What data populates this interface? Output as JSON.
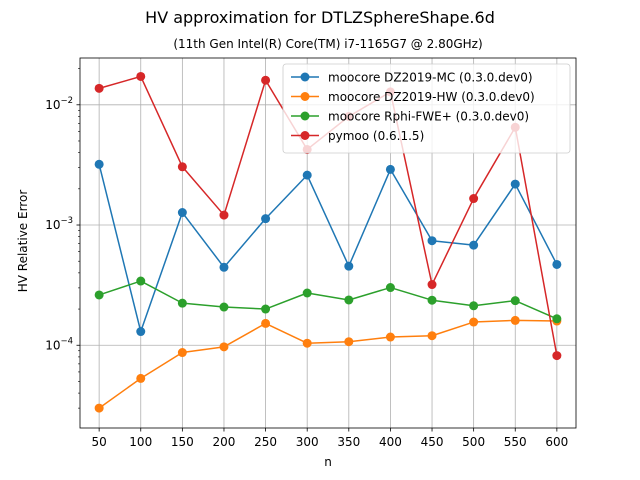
{
  "chart_data": {
    "type": "line",
    "title": "HV approximation for DTLZSphereShape.6d",
    "subtitle": "(11th Gen Intel(R) Core(TM) i7-1165G7 @ 2.80GHz)",
    "xlabel": "n",
    "ylabel": "HV Relative Error",
    "yscale": "log",
    "grid": true,
    "legend_position": "top-right",
    "x": [
      50,
      100,
      150,
      200,
      250,
      300,
      350,
      400,
      450,
      500,
      550,
      600
    ],
    "x_tick_labels": [
      "50",
      "100",
      "150",
      "200",
      "250",
      "300",
      "350",
      "400",
      "450",
      "500",
      "550",
      "600"
    ],
    "y_tick_labels": [
      {
        "value": 0.0001,
        "base": "10",
        "exp": "−4"
      },
      {
        "value": 0.001,
        "base": "10",
        "exp": "−3"
      },
      {
        "value": 0.01,
        "base": "10",
        "exp": "−2"
      }
    ],
    "xlim": [
      27,
      623
    ],
    "ylim": [
      2.05e-05,
      0.0245
    ],
    "series": [
      {
        "name": "moocore DZ2019-MC (0.3.0.dev0)",
        "color": "#1f77b4",
        "values": [
          0.0032,
          0.00013,
          0.00127,
          0.000445,
          0.00113,
          0.0026,
          0.000455,
          0.0029,
          0.00074,
          0.00068,
          0.00219,
          0.00047
        ]
      },
      {
        "name": "moocore DZ2019-HW (0.3.0.dev0)",
        "color": "#ff7f0e",
        "values": [
          3e-05,
          5.3e-05,
          8.7e-05,
          9.7e-05,
          0.000152,
          0.000104,
          0.000107,
          0.000117,
          0.00012,
          0.000156,
          0.000161,
          0.000159
        ]
      },
      {
        "name": "moocore Rphi-FWE+ (0.3.0.dev0)",
        "color": "#2ca02c",
        "values": [
          0.000262,
          0.000342,
          0.000224,
          0.000208,
          0.0002,
          0.000272,
          0.000238,
          0.000302,
          0.000237,
          0.000213,
          0.000235,
          0.000166
        ]
      },
      {
        "name": "pymoo (0.6.1.5)",
        "color": "#d62728",
        "values": [
          0.0137,
          0.0172,
          0.00305,
          0.00121,
          0.016,
          0.00425,
          0.008,
          0.0128,
          0.00032,
          0.00166,
          0.0065,
          8.2e-05
        ]
      }
    ]
  }
}
